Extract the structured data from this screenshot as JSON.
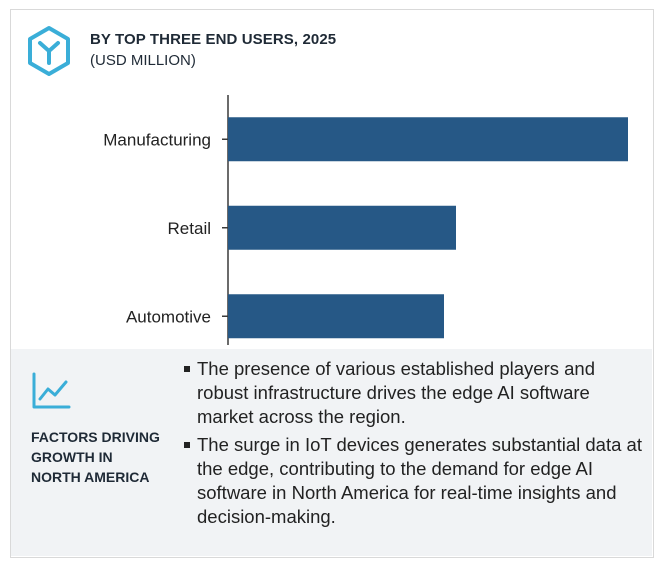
{
  "header": {
    "title": "BY TOP THREE END USERS, 2025",
    "subtitle": "(USD MILLION)",
    "logo_icon": "hexagon-y-logo-icon"
  },
  "chart_data": {
    "type": "bar",
    "orientation": "horizontal",
    "categories": [
      "Manufacturing",
      "Retail",
      "Automotive"
    ],
    "values": [
      100,
      57,
      54
    ],
    "value_scale": "relative (no axis or data labels printed)",
    "xlim": [
      0,
      100
    ],
    "bar_color": "#265886",
    "grid": false,
    "legend": "none"
  },
  "factors": {
    "icon": "line-trend-icon",
    "heading": "FACTORS DRIVING\nGROWTH IN\nNORTH AMERICA",
    "bullets": [
      "The presence of various established players and robust infrastructure drives the edge AI software market across the region.",
      "The surge in IoT devices generates substantial data at the edge, contributing to the demand for edge AI software in North America for real-time insights and decision-making."
    ]
  },
  "colors": {
    "accent": "#3aaed8",
    "bar": "#265886",
    "panel": "#f1f3f5"
  }
}
